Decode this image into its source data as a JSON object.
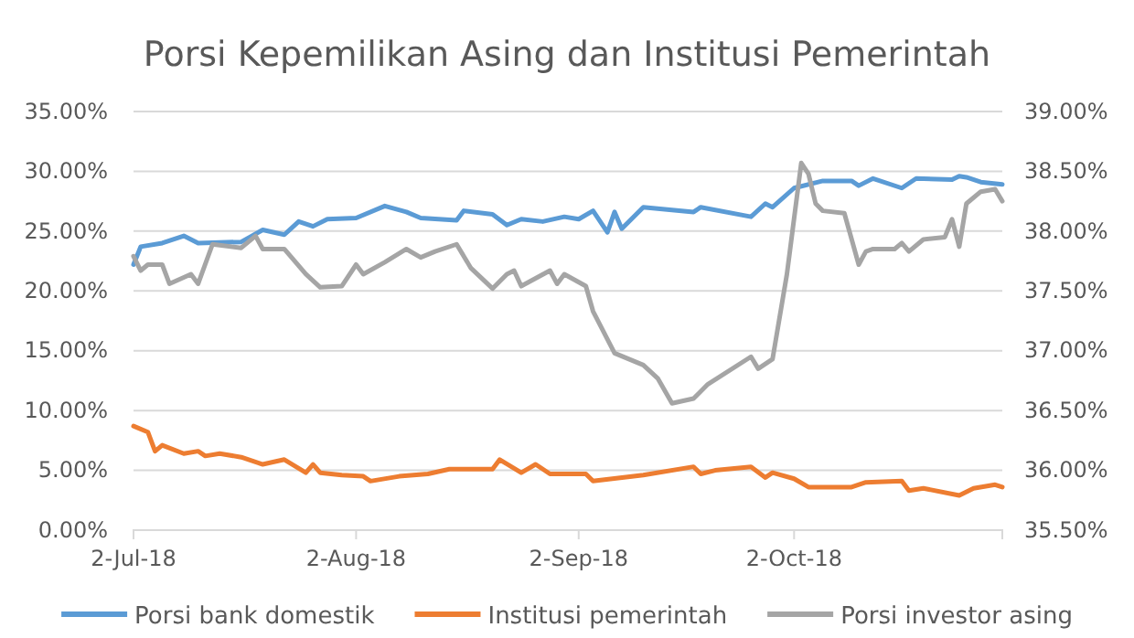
{
  "chart_data": {
    "type": "line",
    "title": "Porsi Kepemilikan Asing dan Institusi Pemerintah",
    "xlim": [
      "2018-07-02",
      "2018-10-31"
    ],
    "xticks": [
      {
        "value": "2018-07-02",
        "label": "2-Jul-18"
      },
      {
        "value": "2018-08-02",
        "label": "2-Aug-18"
      },
      {
        "value": "2018-09-02",
        "label": "2-Sep-18"
      },
      {
        "value": "2018-10-02",
        "label": "2-Oct-18"
      }
    ],
    "ylim": [
      0,
      35
    ],
    "yticks": [
      {
        "value": 0,
        "label": "0.00%"
      },
      {
        "value": 5,
        "label": "5.00%"
      },
      {
        "value": 10,
        "label": "10.00%"
      },
      {
        "value": 15,
        "label": "15.00%"
      },
      {
        "value": 20,
        "label": "20.00%"
      },
      {
        "value": 25,
        "label": "25.00%"
      },
      {
        "value": 30,
        "label": "30.00%"
      },
      {
        "value": 35,
        "label": "35.00%"
      }
    ],
    "y2lim": [
      35.5,
      39
    ],
    "y2ticks": [
      {
        "value": 35.5,
        "label": "35.50%"
      },
      {
        "value": 36,
        "label": "36.00%"
      },
      {
        "value": 36.5,
        "label": "36.50%"
      },
      {
        "value": 37,
        "label": "37.00%"
      },
      {
        "value": 37.5,
        "label": "37.50%"
      },
      {
        "value": 38,
        "label": "38.00%"
      },
      {
        "value": 38.5,
        "label": "38.50%"
      },
      {
        "value": 39,
        "label": "39.00%"
      }
    ],
    "grid": "y",
    "legend": "bottom",
    "marker": "none",
    "line_style": "solid",
    "series": [
      {
        "name": "Porsi bank domestik",
        "color": "#5b9bd5",
        "x": [
          "2018-07-02",
          "2018-07-03",
          "2018-07-06",
          "2018-07-09",
          "2018-07-11",
          "2018-07-17",
          "2018-07-20",
          "2018-07-23",
          "2018-07-25",
          "2018-07-27",
          "2018-07-29",
          "2018-08-02",
          "2018-08-06",
          "2018-08-09",
          "2018-08-11",
          "2018-08-16",
          "2018-08-17",
          "2018-08-21",
          "2018-08-23",
          "2018-08-25",
          "2018-08-28",
          "2018-08-31",
          "2018-09-02",
          "2018-09-04",
          "2018-09-06",
          "2018-09-07",
          "2018-09-08",
          "2018-09-11",
          "2018-09-18",
          "2018-09-19",
          "2018-09-26",
          "2018-09-28",
          "2018-09-29",
          "2018-10-02",
          "2018-10-06",
          "2018-10-10",
          "2018-10-11",
          "2018-10-13",
          "2018-10-17",
          "2018-10-19",
          "2018-10-24",
          "2018-10-25",
          "2018-10-26",
          "2018-10-28",
          "2018-10-31"
        ],
        "values": [
          22.2,
          23.7,
          24.0,
          24.6,
          24.0,
          24.1,
          25.1,
          24.7,
          25.8,
          25.4,
          26.0,
          26.1,
          27.1,
          26.6,
          26.1,
          25.9,
          26.7,
          26.4,
          25.5,
          26.0,
          25.8,
          26.2,
          26.0,
          26.7,
          24.9,
          26.6,
          25.2,
          27.0,
          26.6,
          27.0,
          26.2,
          27.3,
          27.0,
          28.6,
          29.2,
          29.2,
          28.8,
          29.4,
          28.6,
          29.4,
          29.3,
          29.6,
          29.5,
          29.1,
          28.9
        ]
      },
      {
        "name": "Institusi pemerintah",
        "color": "#ed7d31",
        "x": [
          "2018-07-02",
          "2018-07-04",
          "2018-07-05",
          "2018-07-06",
          "2018-07-09",
          "2018-07-11",
          "2018-07-12",
          "2018-07-14",
          "2018-07-17",
          "2018-07-20",
          "2018-07-23",
          "2018-07-26",
          "2018-07-27",
          "2018-07-28",
          "2018-07-31",
          "2018-08-03",
          "2018-08-04",
          "2018-08-08",
          "2018-08-12",
          "2018-08-15",
          "2018-08-21",
          "2018-08-22",
          "2018-08-25",
          "2018-08-27",
          "2018-08-29",
          "2018-09-03",
          "2018-09-04",
          "2018-09-11",
          "2018-09-18",
          "2018-09-19",
          "2018-09-21",
          "2018-09-26",
          "2018-09-28",
          "2018-09-29",
          "2018-10-02",
          "2018-10-04",
          "2018-10-10",
          "2018-10-12",
          "2018-10-17",
          "2018-10-18",
          "2018-10-20",
          "2018-10-25",
          "2018-10-27",
          "2018-10-30",
          "2018-10-31"
        ],
        "values": [
          8.7,
          8.2,
          6.6,
          7.1,
          6.4,
          6.6,
          6.2,
          6.4,
          6.1,
          5.5,
          5.9,
          4.8,
          5.5,
          4.8,
          4.6,
          4.5,
          4.1,
          4.5,
          4.7,
          5.1,
          5.1,
          5.9,
          4.8,
          5.5,
          4.7,
          4.7,
          4.1,
          4.6,
          5.3,
          4.7,
          5.0,
          5.3,
          4.4,
          4.8,
          4.3,
          3.6,
          3.6,
          4.0,
          4.1,
          3.3,
          3.5,
          2.9,
          3.5,
          3.8,
          3.6
        ]
      },
      {
        "name": "Porsi investor asing",
        "color": "#a5a5a5",
        "axis": "y2",
        "x": [
          "2018-07-02",
          "2018-07-03",
          "2018-07-04",
          "2018-07-06",
          "2018-07-07",
          "2018-07-10",
          "2018-07-11",
          "2018-07-13",
          "2018-07-17",
          "2018-07-19",
          "2018-07-20",
          "2018-07-23",
          "2018-07-26",
          "2018-07-28",
          "2018-07-31",
          "2018-08-02",
          "2018-08-03",
          "2018-08-06",
          "2018-08-09",
          "2018-08-11",
          "2018-08-13",
          "2018-08-16",
          "2018-08-18",
          "2018-08-21",
          "2018-08-23",
          "2018-08-24",
          "2018-08-25",
          "2018-08-29",
          "2018-08-30",
          "2018-08-31",
          "2018-09-03",
          "2018-09-04",
          "2018-09-07",
          "2018-09-11",
          "2018-09-13",
          "2018-09-15",
          "2018-09-18",
          "2018-09-20",
          "2018-09-26",
          "2018-09-27",
          "2018-09-29",
          "2018-10-01",
          "2018-10-03",
          "2018-10-04",
          "2018-10-05",
          "2018-10-06",
          "2018-10-09",
          "2018-10-11",
          "2018-10-12",
          "2018-10-13",
          "2018-10-16",
          "2018-10-17",
          "2018-10-18",
          "2018-10-20",
          "2018-10-23",
          "2018-10-24",
          "2018-10-25",
          "2018-10-26",
          "2018-10-28",
          "2018-10-30",
          "2018-10-31"
        ],
        "values": [
          37.79,
          37.67,
          37.72,
          37.72,
          37.56,
          37.64,
          37.56,
          37.89,
          37.86,
          37.96,
          37.85,
          37.85,
          37.64,
          37.53,
          37.54,
          37.72,
          37.64,
          37.74,
          37.85,
          37.78,
          37.83,
          37.89,
          37.69,
          37.52,
          37.64,
          37.67,
          37.54,
          37.67,
          37.56,
          37.64,
          37.54,
          37.33,
          36.98,
          36.88,
          36.77,
          36.56,
          36.6,
          36.72,
          36.95,
          36.85,
          36.93,
          37.64,
          38.57,
          38.48,
          38.23,
          38.17,
          38.15,
          37.72,
          37.83,
          37.85,
          37.85,
          37.9,
          37.83,
          37.93,
          37.95,
          38.1,
          37.87,
          38.23,
          38.33,
          38.35,
          38.25
        ]
      }
    ]
  }
}
